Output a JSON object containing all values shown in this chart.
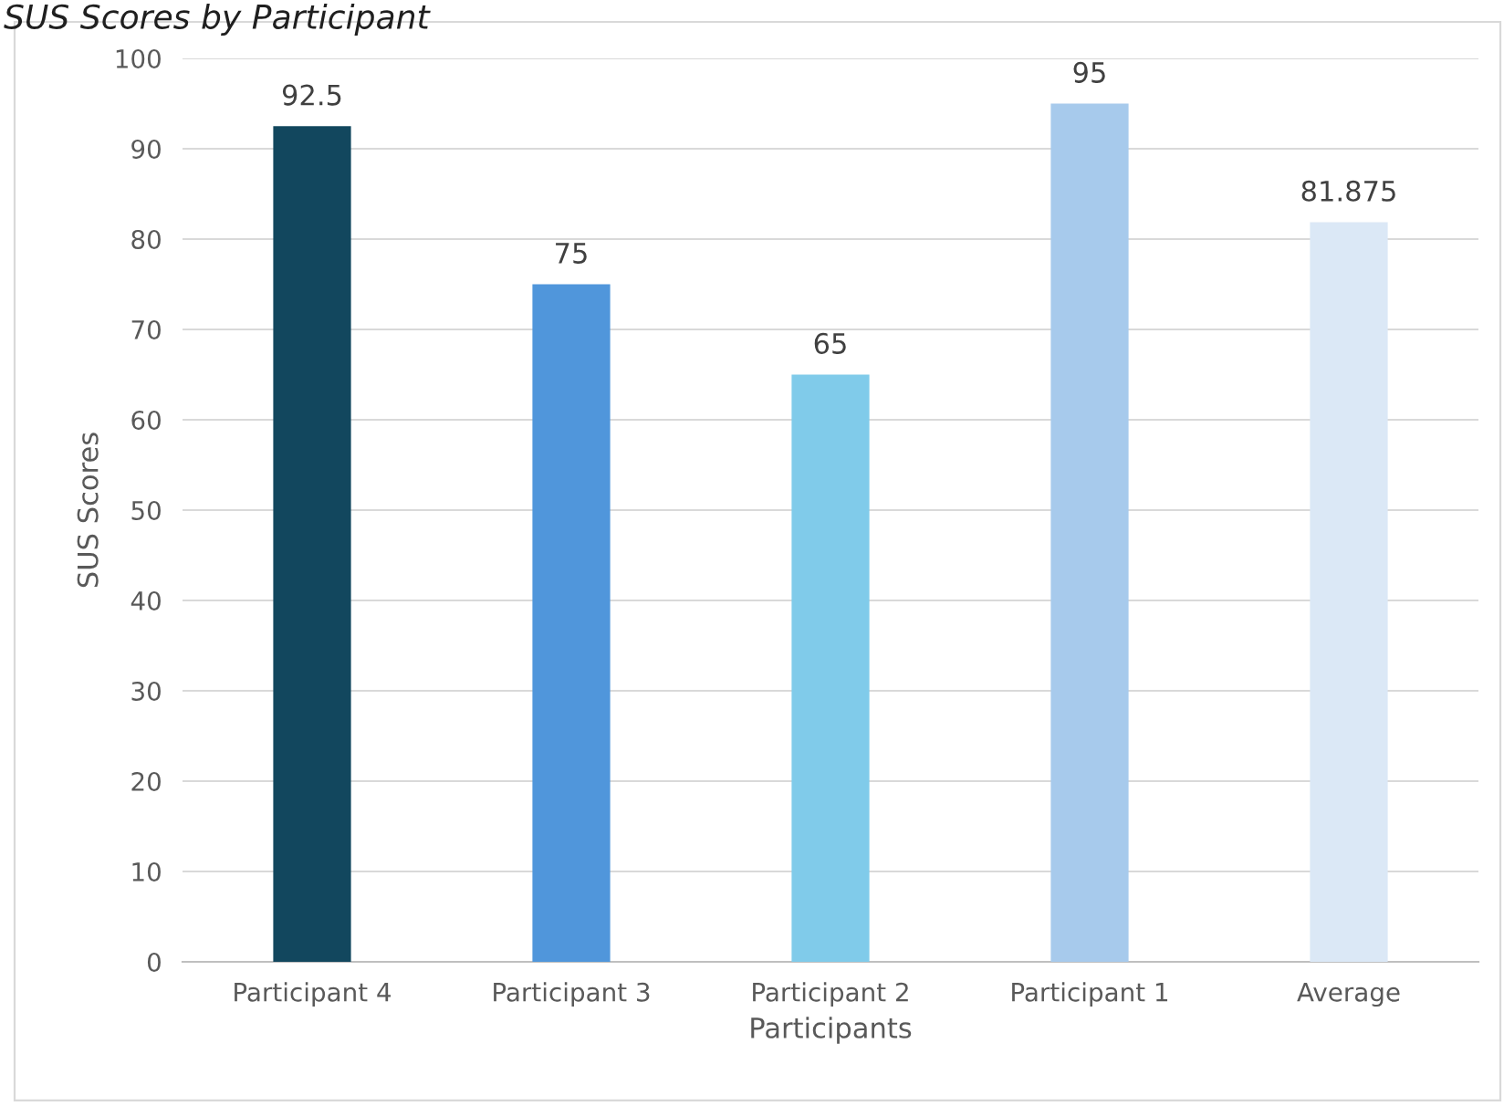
{
  "chart_data": {
    "type": "bar",
    "title": "SUS Scores by Participant",
    "xlabel": "Participants",
    "ylabel": "SUS Scores",
    "categories": [
      "Participant 4",
      "Participant 3",
      "Participant 2",
      "Participant 1",
      "Average"
    ],
    "values": [
      92.5,
      75,
      65,
      95,
      81.875
    ],
    "colors": [
      "#12475e",
      "#5096db",
      "#80cbea",
      "#a7caec",
      "#dbe8f6"
    ],
    "ylim": [
      0,
      100
    ],
    "yticks": [
      0,
      10,
      20,
      30,
      40,
      50,
      60,
      70,
      80,
      90,
      100
    ],
    "grid": "y",
    "data_labels": true,
    "legend": false
  }
}
